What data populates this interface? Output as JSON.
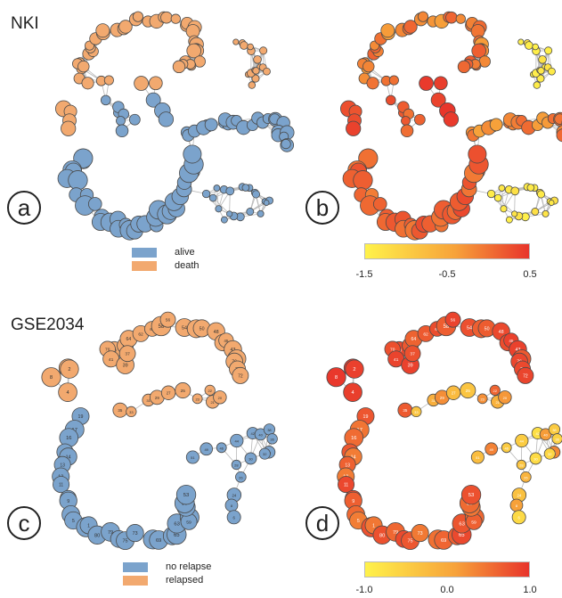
{
  "datasets": [
    "NKI",
    "GSE2034"
  ],
  "panels": [
    "a",
    "b",
    "c",
    "d"
  ],
  "legend_nki": [
    {
      "label": "alive",
      "color": "#7ba3cc"
    },
    {
      "label": "death",
      "color": "#f2a96f"
    }
  ],
  "legend_gse": [
    {
      "label": "no relapse",
      "color": "#7ba3cc"
    },
    {
      "label": "relapsed",
      "color": "#f2a96f"
    }
  ],
  "colorbar_nki": {
    "ticks": [
      "-1.5",
      "-0.5",
      "0.5"
    ],
    "low": "#fff24a",
    "high": "#e8342b"
  },
  "colorbar_gse": {
    "ticks": [
      "-1.0",
      "0.0",
      "1.0"
    ],
    "low": "#fff24a",
    "high": "#e8342b"
  },
  "colors": {
    "alive": "#7ba3cc",
    "death": "#f2a96f",
    "edge": "#b8b8b8",
    "node_stroke": "#4a4a4a"
  },
  "node_labels_gse": [
    "8",
    "6",
    "2",
    "4",
    "68",
    "66",
    "64",
    "62",
    "60",
    "58",
    "56",
    "54",
    "52",
    "50",
    "48",
    "47",
    "45",
    "43",
    "78",
    "76",
    "74",
    "72",
    "70",
    "41",
    "39",
    "37",
    "35",
    "33",
    "31",
    "29",
    "27",
    "25",
    "23",
    "22",
    "21",
    "20",
    "19",
    "18",
    "17",
    "16",
    "15",
    "14",
    "13",
    "12",
    "11",
    "10",
    "9",
    "7",
    "5",
    "3",
    "1",
    "80",
    "79",
    "77",
    "75",
    "73",
    "71",
    "69",
    "67",
    "65",
    "63",
    "61",
    "59",
    "57",
    "55",
    "53",
    "51",
    "49",
    "46",
    "44",
    "42",
    "40",
    "38",
    "36",
    "34",
    "32",
    "30",
    "28",
    "26",
    "24"
  ]
}
